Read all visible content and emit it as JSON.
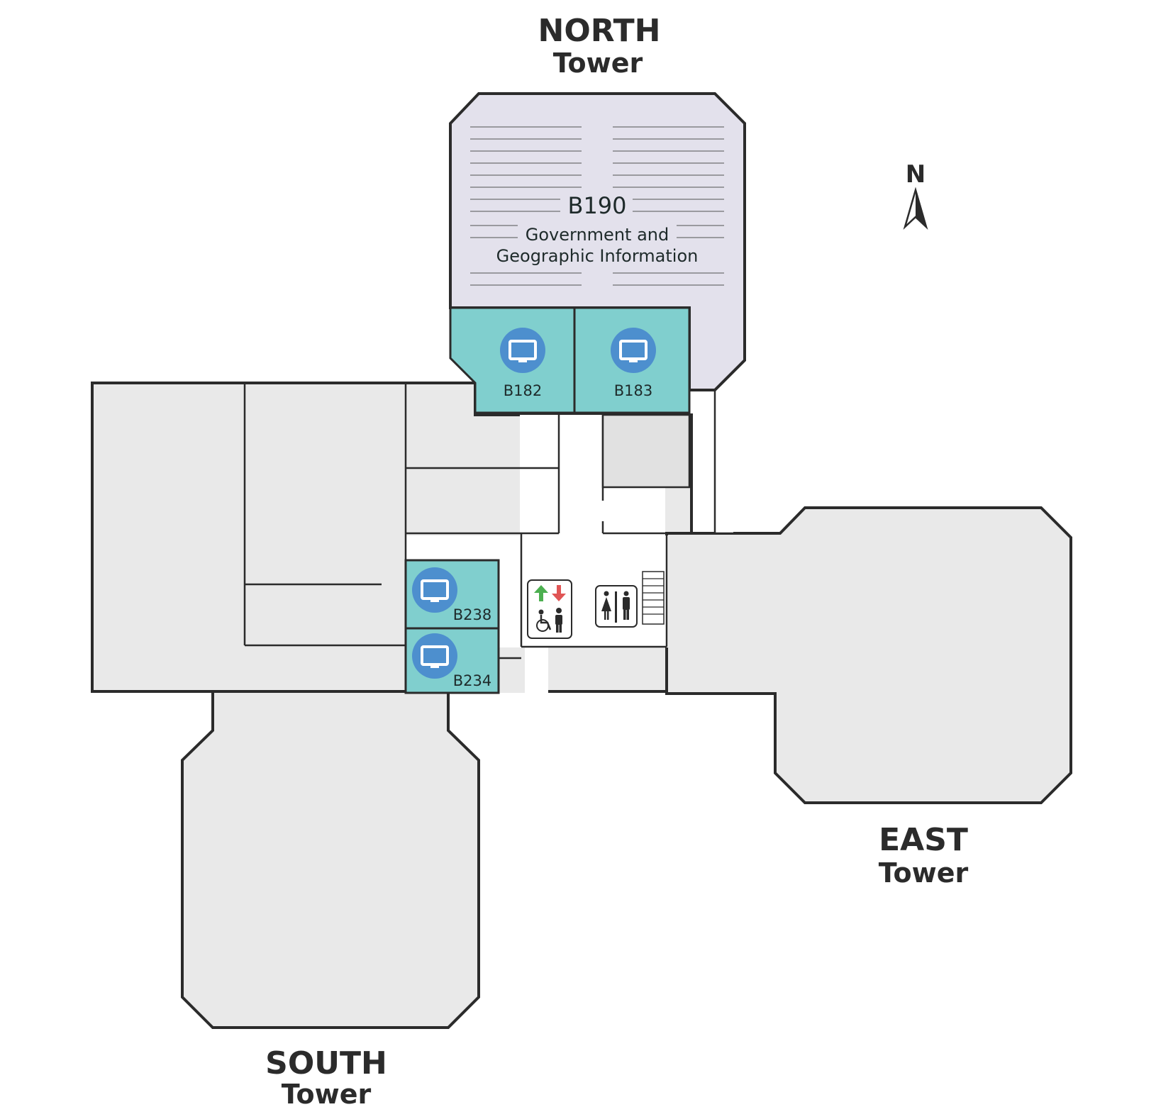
{
  "towers": {
    "north": {
      "name": "NORTH",
      "sub": "Tower"
    },
    "east": {
      "name": "EAST",
      "sub": "Tower"
    },
    "south": {
      "name": "SOUTH",
      "sub": "Tower"
    }
  },
  "compass": {
    "label": "N"
  },
  "main_room": {
    "number": "B190",
    "name_line1": "Government and",
    "name_line2": "Geographic Information"
  },
  "computer_rooms": [
    {
      "number": "B182",
      "icon": "computer-icon"
    },
    {
      "number": "B183",
      "icon": "computer-icon"
    },
    {
      "number": "B238",
      "icon": "computer-icon"
    },
    {
      "number": "B234",
      "icon": "computer-icon"
    }
  ],
  "amenities": [
    {
      "icon": "elevator-icon"
    },
    {
      "icon": "restroom-icon"
    },
    {
      "icon": "stairs-icon"
    }
  ],
  "colors": {
    "computer_room": "#80cfce",
    "main_room": "#e3e1ec",
    "building": "#e9e9e9",
    "computer_icon": "#4d8fce",
    "up_arrow": "#4caf50",
    "down_arrow": "#e05555"
  }
}
